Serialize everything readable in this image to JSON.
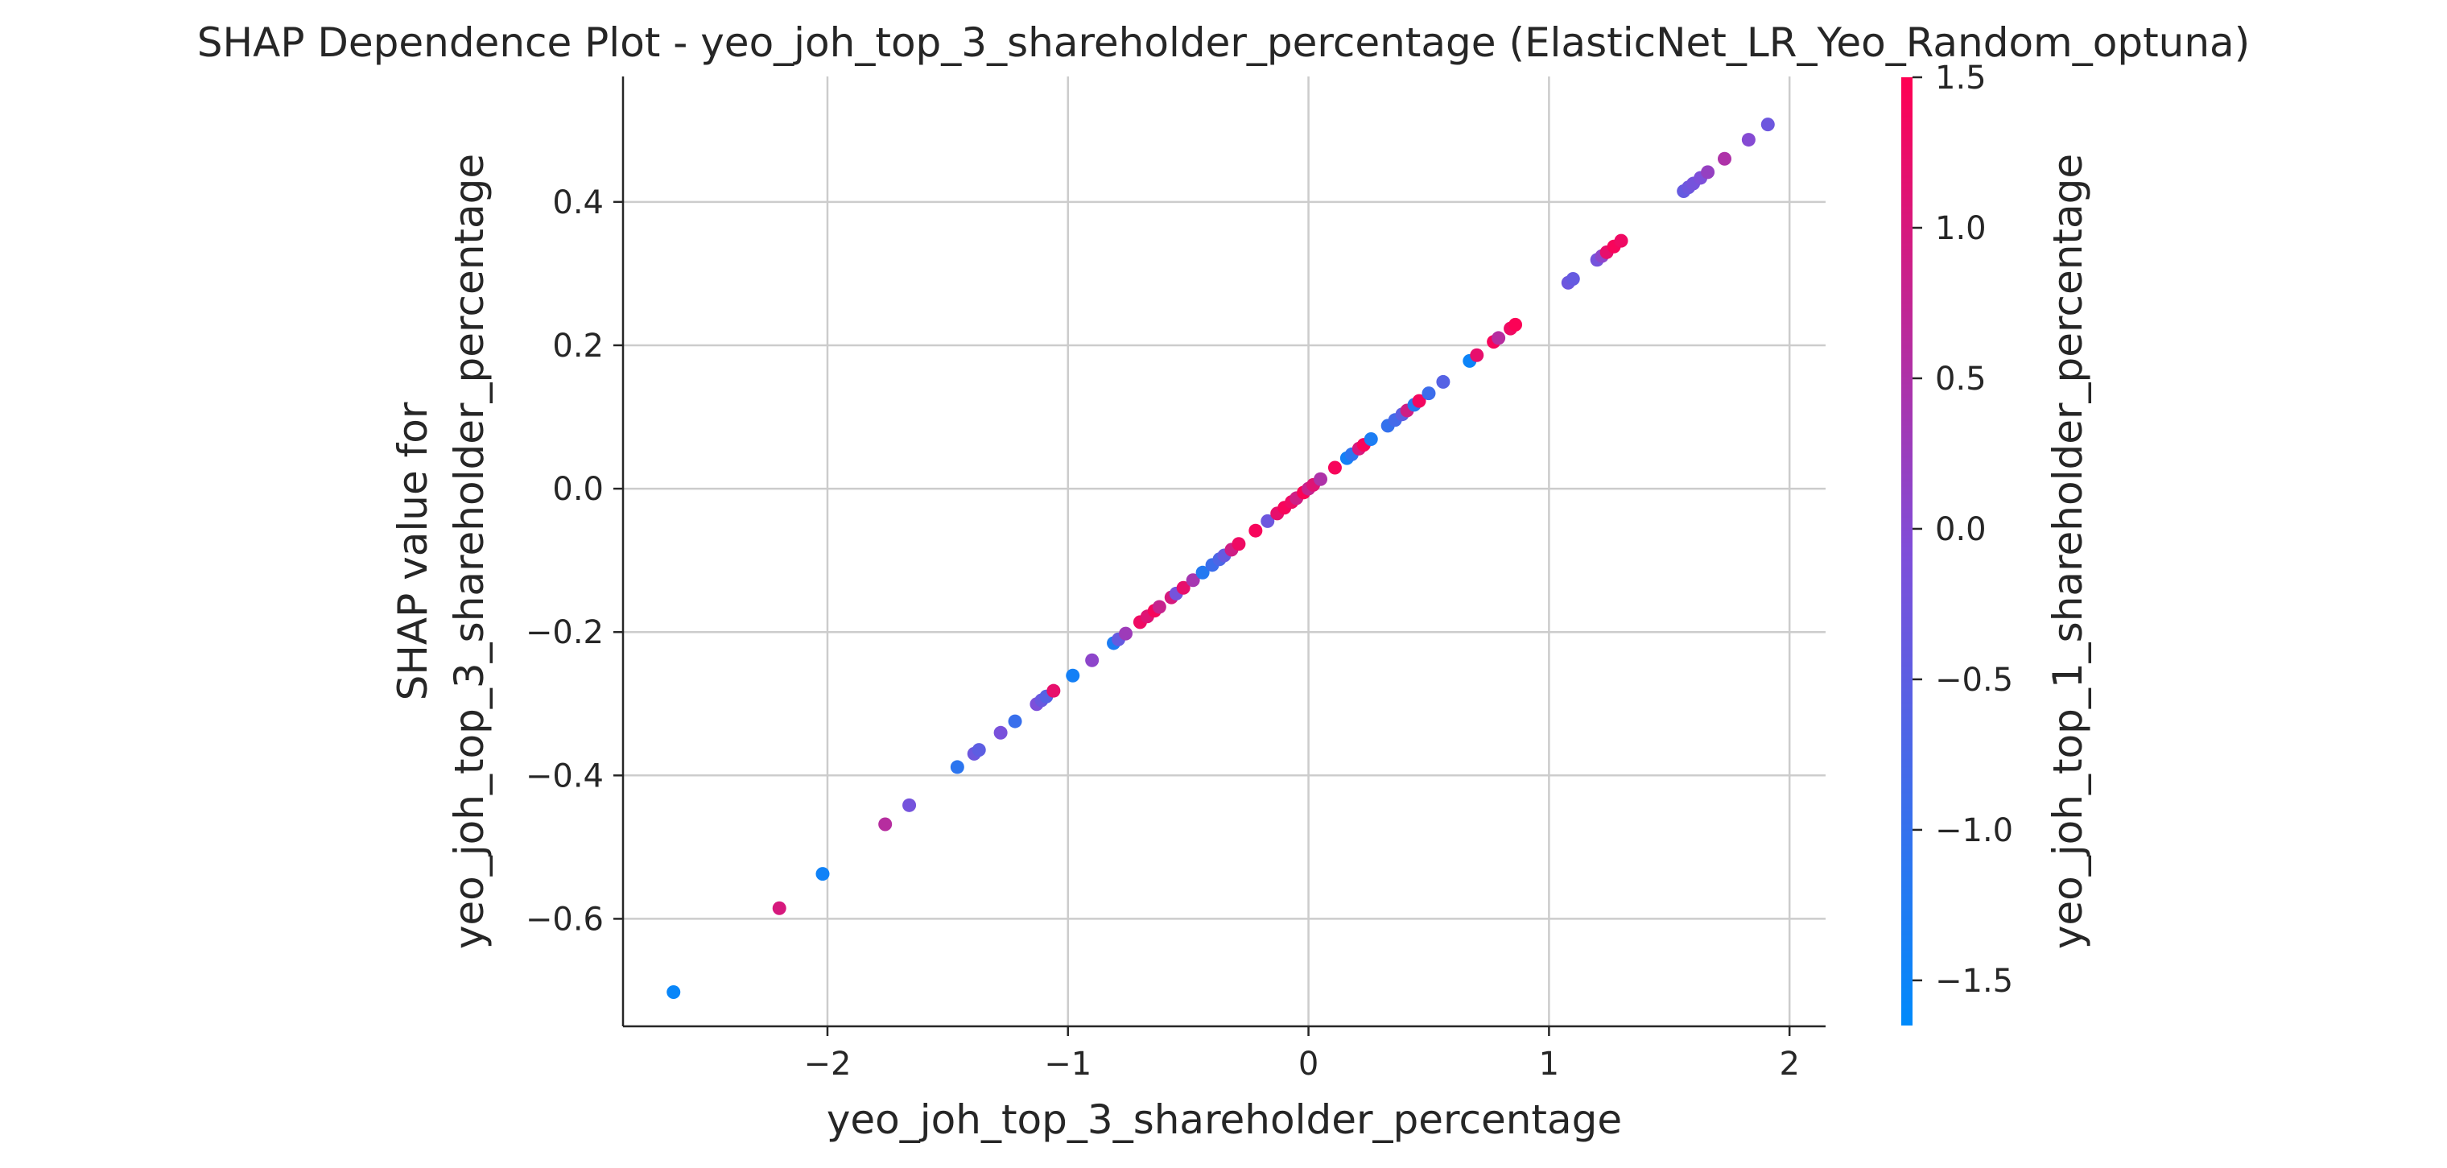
{
  "chart_data": {
    "type": "scatter",
    "title": "SHAP Dependence Plot - yeo_joh_top_3_shareholder_percentage (ElasticNet_LR_Yeo_Random_optuna)",
    "xlabel": "yeo_joh_top_3_shareholder_percentage",
    "ylabel_lines": [
      "SHAP value for",
      "yeo_joh_top_3_shareholder_percentage"
    ],
    "colorbar_label": "yeo_joh_top_1_shareholder_percentage",
    "xlim": [
      -2.85,
      2.15
    ],
    "ylim": [
      -0.75,
      0.575
    ],
    "color_range": [
      -1.65,
      1.5
    ],
    "x_ticks": [
      -2,
      -1,
      0,
      1,
      2
    ],
    "x_tick_labels": [
      "−2",
      "−1",
      "0",
      "1",
      "2"
    ],
    "y_ticks": [
      -0.6,
      -0.4,
      -0.2,
      0.0,
      0.2,
      0.4
    ],
    "y_tick_labels": [
      "−0.6",
      "−0.4",
      "−0.2",
      "0.0",
      "0.2",
      "0.4"
    ],
    "colorbar_ticks": [
      -1.5,
      -1.0,
      -0.5,
      0.0,
      0.5,
      1.0,
      1.5
    ],
    "colorbar_tick_labels": [
      "−1.5",
      "−1.0",
      "−0.5",
      "0.0",
      "0.5",
      "1.0",
      "1.5"
    ],
    "colormap": [
      "#008afb",
      "#7f4ed9",
      "#ff0052"
    ],
    "grid": true,
    "slope": 0.266,
    "points": [
      {
        "x": -2.64,
        "c": -1.55
      },
      {
        "x": -2.2,
        "c": 1.0
      },
      {
        "x": -2.02,
        "c": -1.45
      },
      {
        "x": -1.76,
        "c": 0.6
      },
      {
        "x": -1.66,
        "c": -0.2
      },
      {
        "x": -1.46,
        "c": -1.1
      },
      {
        "x": -1.39,
        "c": -0.3
      },
      {
        "x": -1.37,
        "c": -0.5
      },
      {
        "x": -1.28,
        "c": -0.15
      },
      {
        "x": -1.22,
        "c": -0.95
      },
      {
        "x": -1.13,
        "c": -0.1
      },
      {
        "x": -1.11,
        "c": -0.35
      },
      {
        "x": -1.09,
        "c": -0.6
      },
      {
        "x": -1.06,
        "c": 1.2
      },
      {
        "x": -0.98,
        "c": -1.4
      },
      {
        "x": -0.9,
        "c": 0.1
      },
      {
        "x": -0.81,
        "c": -1.3
      },
      {
        "x": -0.79,
        "c": -0.4
      },
      {
        "x": -0.76,
        "c": 0.3
      },
      {
        "x": -0.7,
        "c": 1.3
      },
      {
        "x": -0.67,
        "c": 1.1
      },
      {
        "x": -0.64,
        "c": 1.4
      },
      {
        "x": -0.62,
        "c": 0.8
      },
      {
        "x": -0.57,
        "c": 1.0
      },
      {
        "x": -0.55,
        "c": -0.2
      },
      {
        "x": -0.52,
        "c": 1.2
      },
      {
        "x": -0.48,
        "c": 0.4
      },
      {
        "x": -0.44,
        "c": -1.2
      },
      {
        "x": -0.4,
        "c": -0.9
      },
      {
        "x": -0.37,
        "c": -0.7
      },
      {
        "x": -0.35,
        "c": -0.4
      },
      {
        "x": -0.32,
        "c": 0.9
      },
      {
        "x": -0.29,
        "c": 1.3
      },
      {
        "x": -0.22,
        "c": 1.4
      },
      {
        "x": -0.17,
        "c": -0.3
      },
      {
        "x": -0.13,
        "c": 1.2
      },
      {
        "x": -0.1,
        "c": 1.4
      },
      {
        "x": -0.07,
        "c": 1.3
      },
      {
        "x": -0.05,
        "c": 0.9
      },
      {
        "x": -0.02,
        "c": 1.45
      },
      {
        "x": 0.0,
        "c": 0.8
      },
      {
        "x": 0.02,
        "c": 1.1
      },
      {
        "x": 0.05,
        "c": 0.5
      },
      {
        "x": 0.11,
        "c": 1.4
      },
      {
        "x": 0.16,
        "c": -1.4
      },
      {
        "x": 0.18,
        "c": -1.1
      },
      {
        "x": 0.21,
        "c": 1.0
      },
      {
        "x": 0.23,
        "c": 1.4
      },
      {
        "x": 0.26,
        "c": -1.3
      },
      {
        "x": 0.33,
        "c": -1.0
      },
      {
        "x": 0.36,
        "c": -0.8
      },
      {
        "x": 0.39,
        "c": -0.5
      },
      {
        "x": 0.41,
        "c": 0.9
      },
      {
        "x": 0.44,
        "c": -1.2
      },
      {
        "x": 0.46,
        "c": 1.35
      },
      {
        "x": 0.5,
        "c": -0.9
      },
      {
        "x": 0.56,
        "c": -0.6
      },
      {
        "x": 0.67,
        "c": -1.5
      },
      {
        "x": 0.7,
        "c": 1.2
      },
      {
        "x": 0.77,
        "c": 1.4
      },
      {
        "x": 0.79,
        "c": 0.6
      },
      {
        "x": 0.84,
        "c": 1.3
      },
      {
        "x": 0.86,
        "c": 1.45
      },
      {
        "x": 1.08,
        "c": -0.3
      },
      {
        "x": 1.1,
        "c": -0.4
      },
      {
        "x": 1.2,
        "c": -0.2
      },
      {
        "x": 1.22,
        "c": 0.1
      },
      {
        "x": 1.24,
        "c": 1.2
      },
      {
        "x": 1.27,
        "c": 1.4
      },
      {
        "x": 1.3,
        "c": 1.3
      },
      {
        "x": 1.56,
        "c": -0.4
      },
      {
        "x": 1.58,
        "c": -0.3
      },
      {
        "x": 1.6,
        "c": -0.2
      },
      {
        "x": 1.63,
        "c": -0.1
      },
      {
        "x": 1.66,
        "c": 0.2
      },
      {
        "x": 1.73,
        "c": 0.5
      },
      {
        "x": 1.83,
        "c": 0.0
      },
      {
        "x": 1.91,
        "c": -0.3
      }
    ]
  }
}
